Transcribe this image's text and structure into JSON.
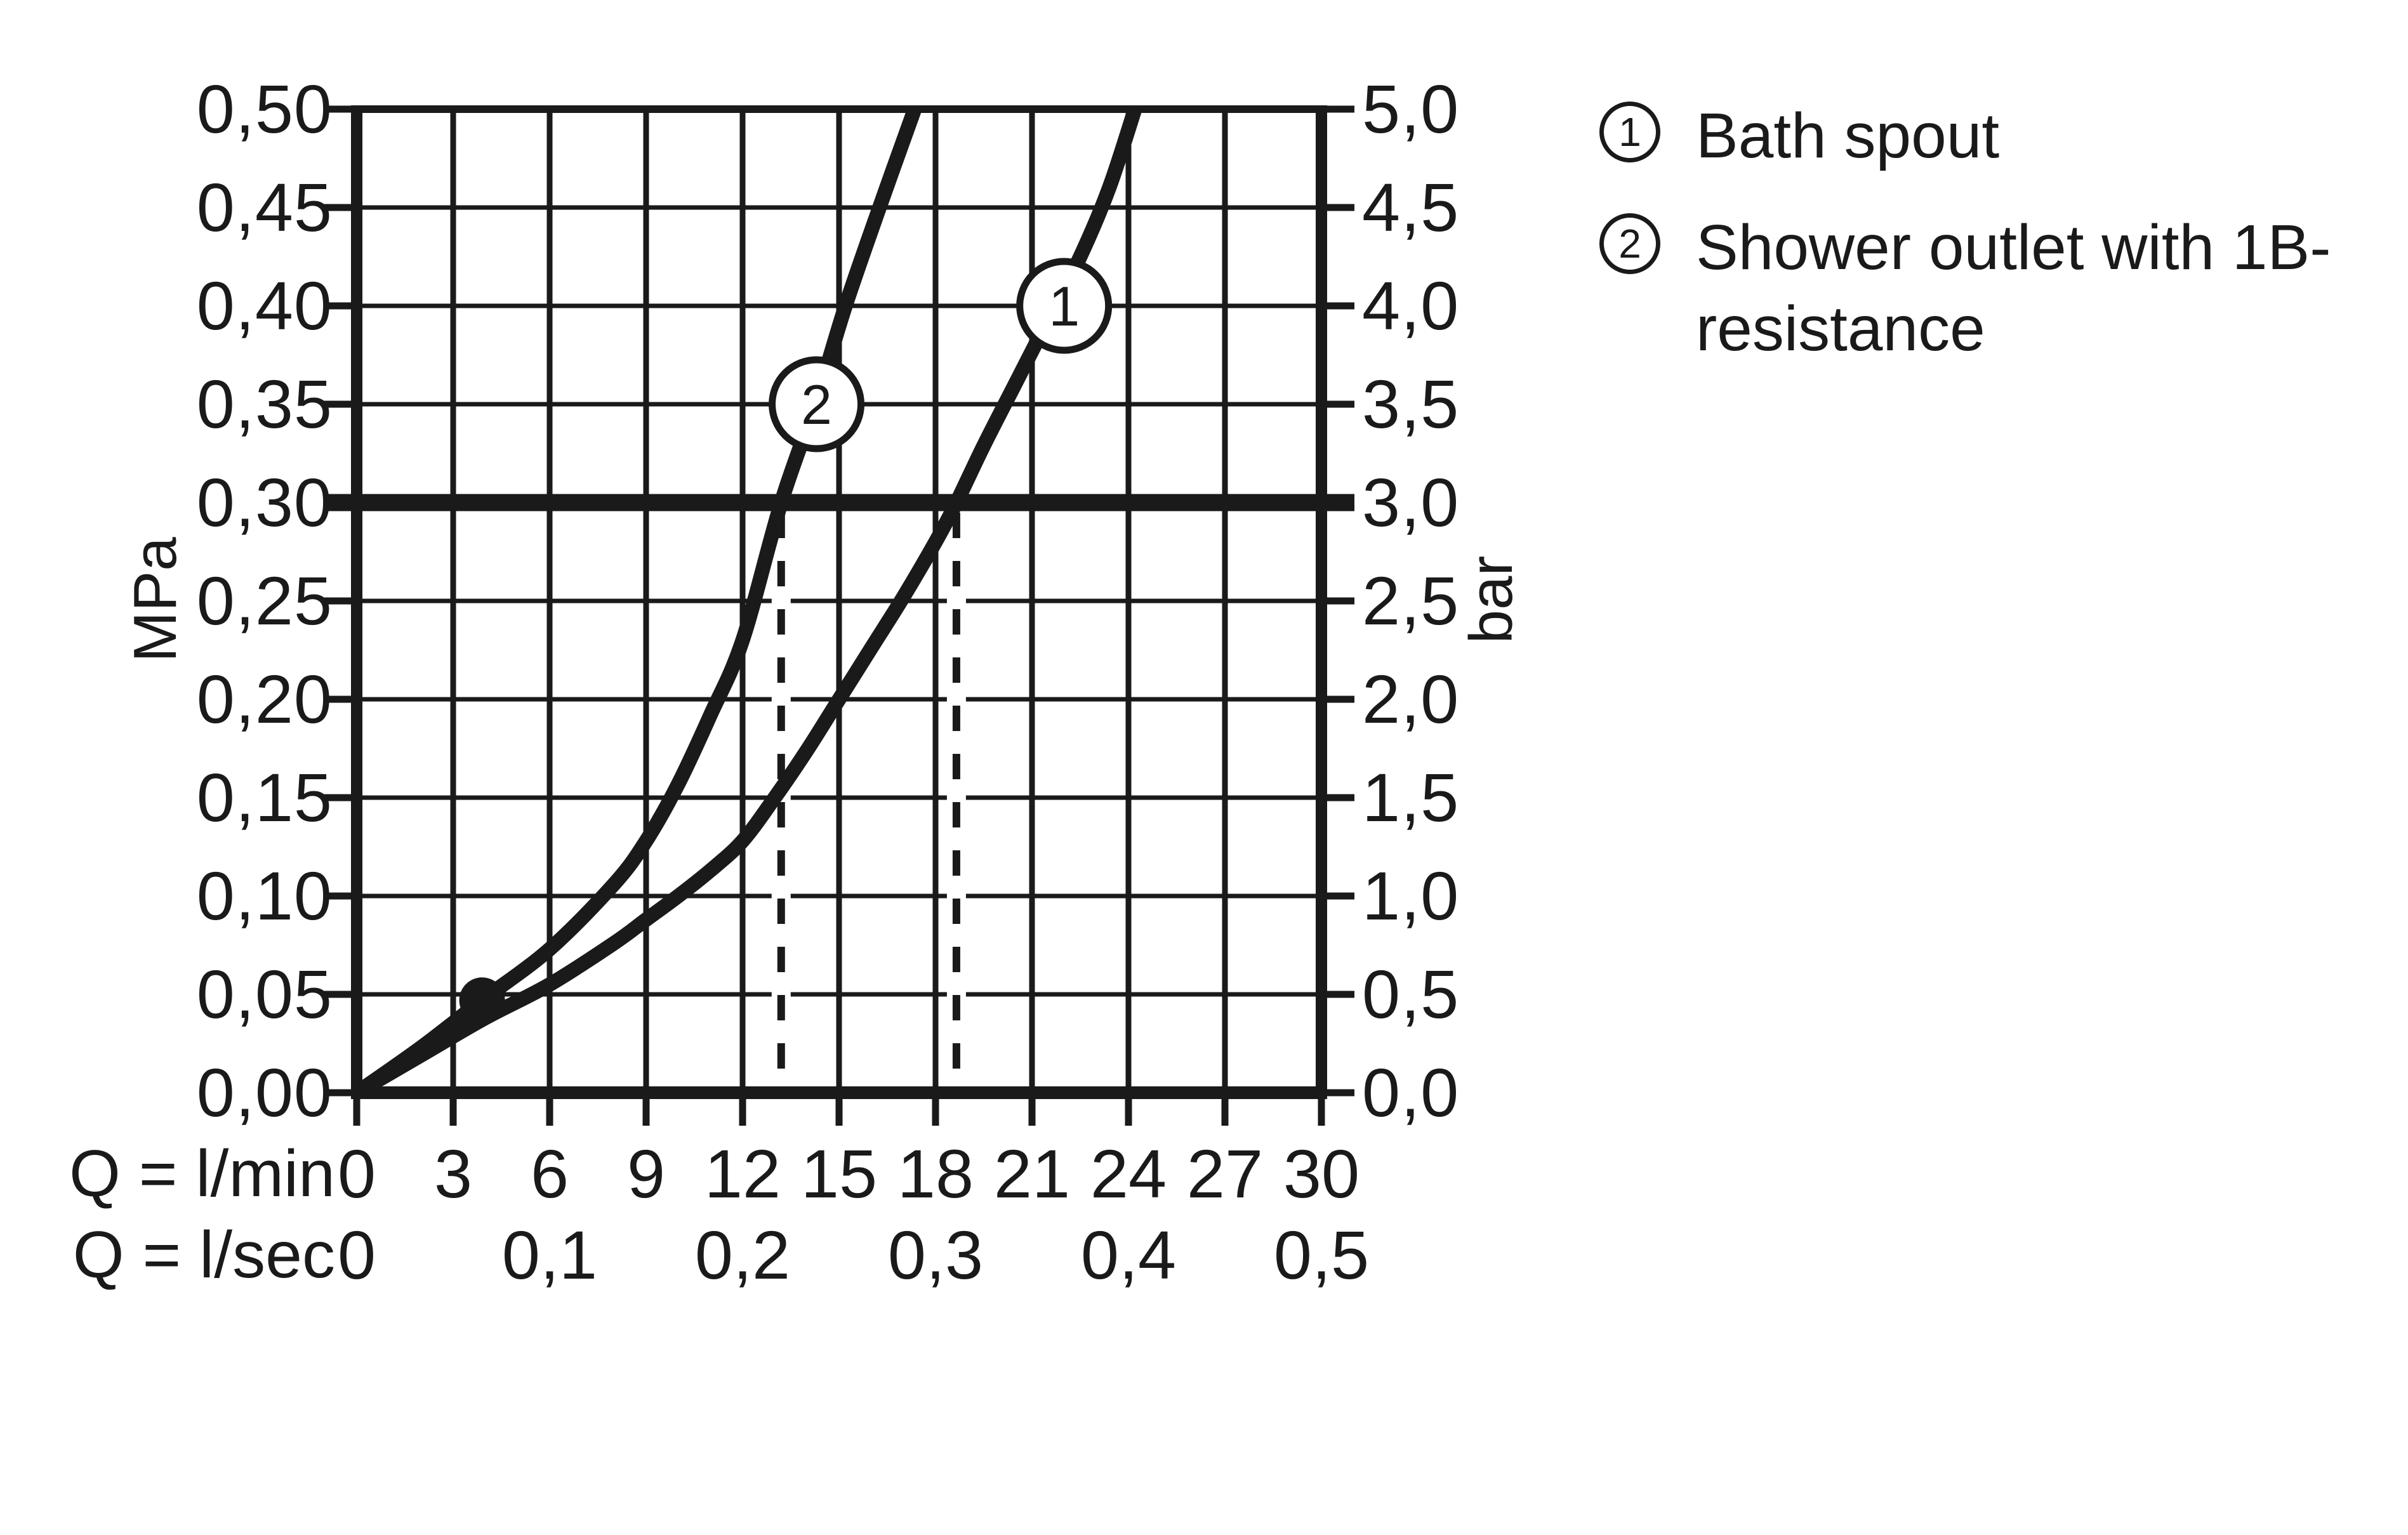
{
  "colors": {
    "ink": "#1a1a1a",
    "background": "#ffffff"
  },
  "axes": {
    "left": {
      "unit": "MPa",
      "ticks": [
        "0,50",
        "0,45",
        "0,40",
        "0,35",
        "0,30",
        "0,25",
        "0,20",
        "0,15",
        "0,10",
        "0,05",
        "0,00"
      ]
    },
    "right": {
      "unit": "bar",
      "ticks": [
        "5,0",
        "4,5",
        "4,0",
        "3,5",
        "3,0",
        "2,5",
        "2,0",
        "1,5",
        "1,0",
        "0,5",
        "0,0"
      ]
    },
    "bottom_lmin": {
      "label": "Q = l/min",
      "ticks": [
        "0",
        "3",
        "6",
        "9",
        "12",
        "15",
        "18",
        "21",
        "24",
        "27",
        "30"
      ]
    },
    "bottom_lsec": {
      "label": "Q = l/sec",
      "ticks": [
        "0",
        "0,1",
        "0,2",
        "0,3",
        "0,4",
        "0,5"
      ]
    }
  },
  "legend": {
    "items": [
      {
        "marker": "1",
        "label_line1": "Bath spout",
        "label_line2": ""
      },
      {
        "marker": "2",
        "label_line1": "Shower outlet with 1B-",
        "label_line2": "resistance"
      }
    ]
  },
  "chart_data": {
    "type": "line",
    "title": "",
    "xlabel": "Q (l/min)",
    "ylabel_left": "MPa",
    "ylabel_right": "bar",
    "x_range": [
      0,
      30
    ],
    "y_range_mpa": [
      0,
      0.5
    ],
    "y_range_bar": [
      0,
      5.0
    ],
    "x_gridline_step": 3,
    "y_gridline_step_mpa": 0.05,
    "grid": true,
    "reference_line_mpa": 0.3,
    "dashed_drop_lines_x": [
      13.2,
      18.65
    ],
    "series": [
      {
        "name": "Bath spout",
        "marker_label": "1",
        "marker_at": [
          22,
          0.4
        ],
        "points": [
          [
            0,
            0
          ],
          [
            2,
            0.019
          ],
          [
            4,
            0.038
          ],
          [
            6,
            0.055
          ],
          [
            8,
            0.076
          ],
          [
            9,
            0.088
          ],
          [
            10,
            0.1
          ],
          [
            11,
            0.113
          ],
          [
            12,
            0.128
          ],
          [
            13,
            0.15
          ],
          [
            14,
            0.174
          ],
          [
            15,
            0.2
          ],
          [
            16,
            0.226
          ],
          [
            17,
            0.252
          ],
          [
            18,
            0.28
          ],
          [
            18.65,
            0.3
          ],
          [
            19.5,
            0.329
          ],
          [
            20.5,
            0.361
          ],
          [
            21.5,
            0.393
          ],
          [
            22.5,
            0.425
          ],
          [
            23.4,
            0.46
          ],
          [
            24.2,
            0.5
          ]
        ]
      },
      {
        "name": "Shower outlet with 1B-resistance",
        "marker_label": "2",
        "marker_at": [
          14.3,
          0.35
        ],
        "dot_at": [
          3.9,
          0.047
        ],
        "points": [
          [
            0,
            0
          ],
          [
            2,
            0.023
          ],
          [
            3.9,
            0.047
          ],
          [
            6,
            0.073
          ],
          [
            8,
            0.106
          ],
          [
            9,
            0.128
          ],
          [
            10,
            0.157
          ],
          [
            11,
            0.192
          ],
          [
            12,
            0.23
          ],
          [
            13.2,
            0.3
          ],
          [
            14.3,
            0.352
          ],
          [
            15.2,
            0.4
          ],
          [
            16.3,
            0.452
          ],
          [
            17.35,
            0.5
          ]
        ]
      }
    ]
  }
}
